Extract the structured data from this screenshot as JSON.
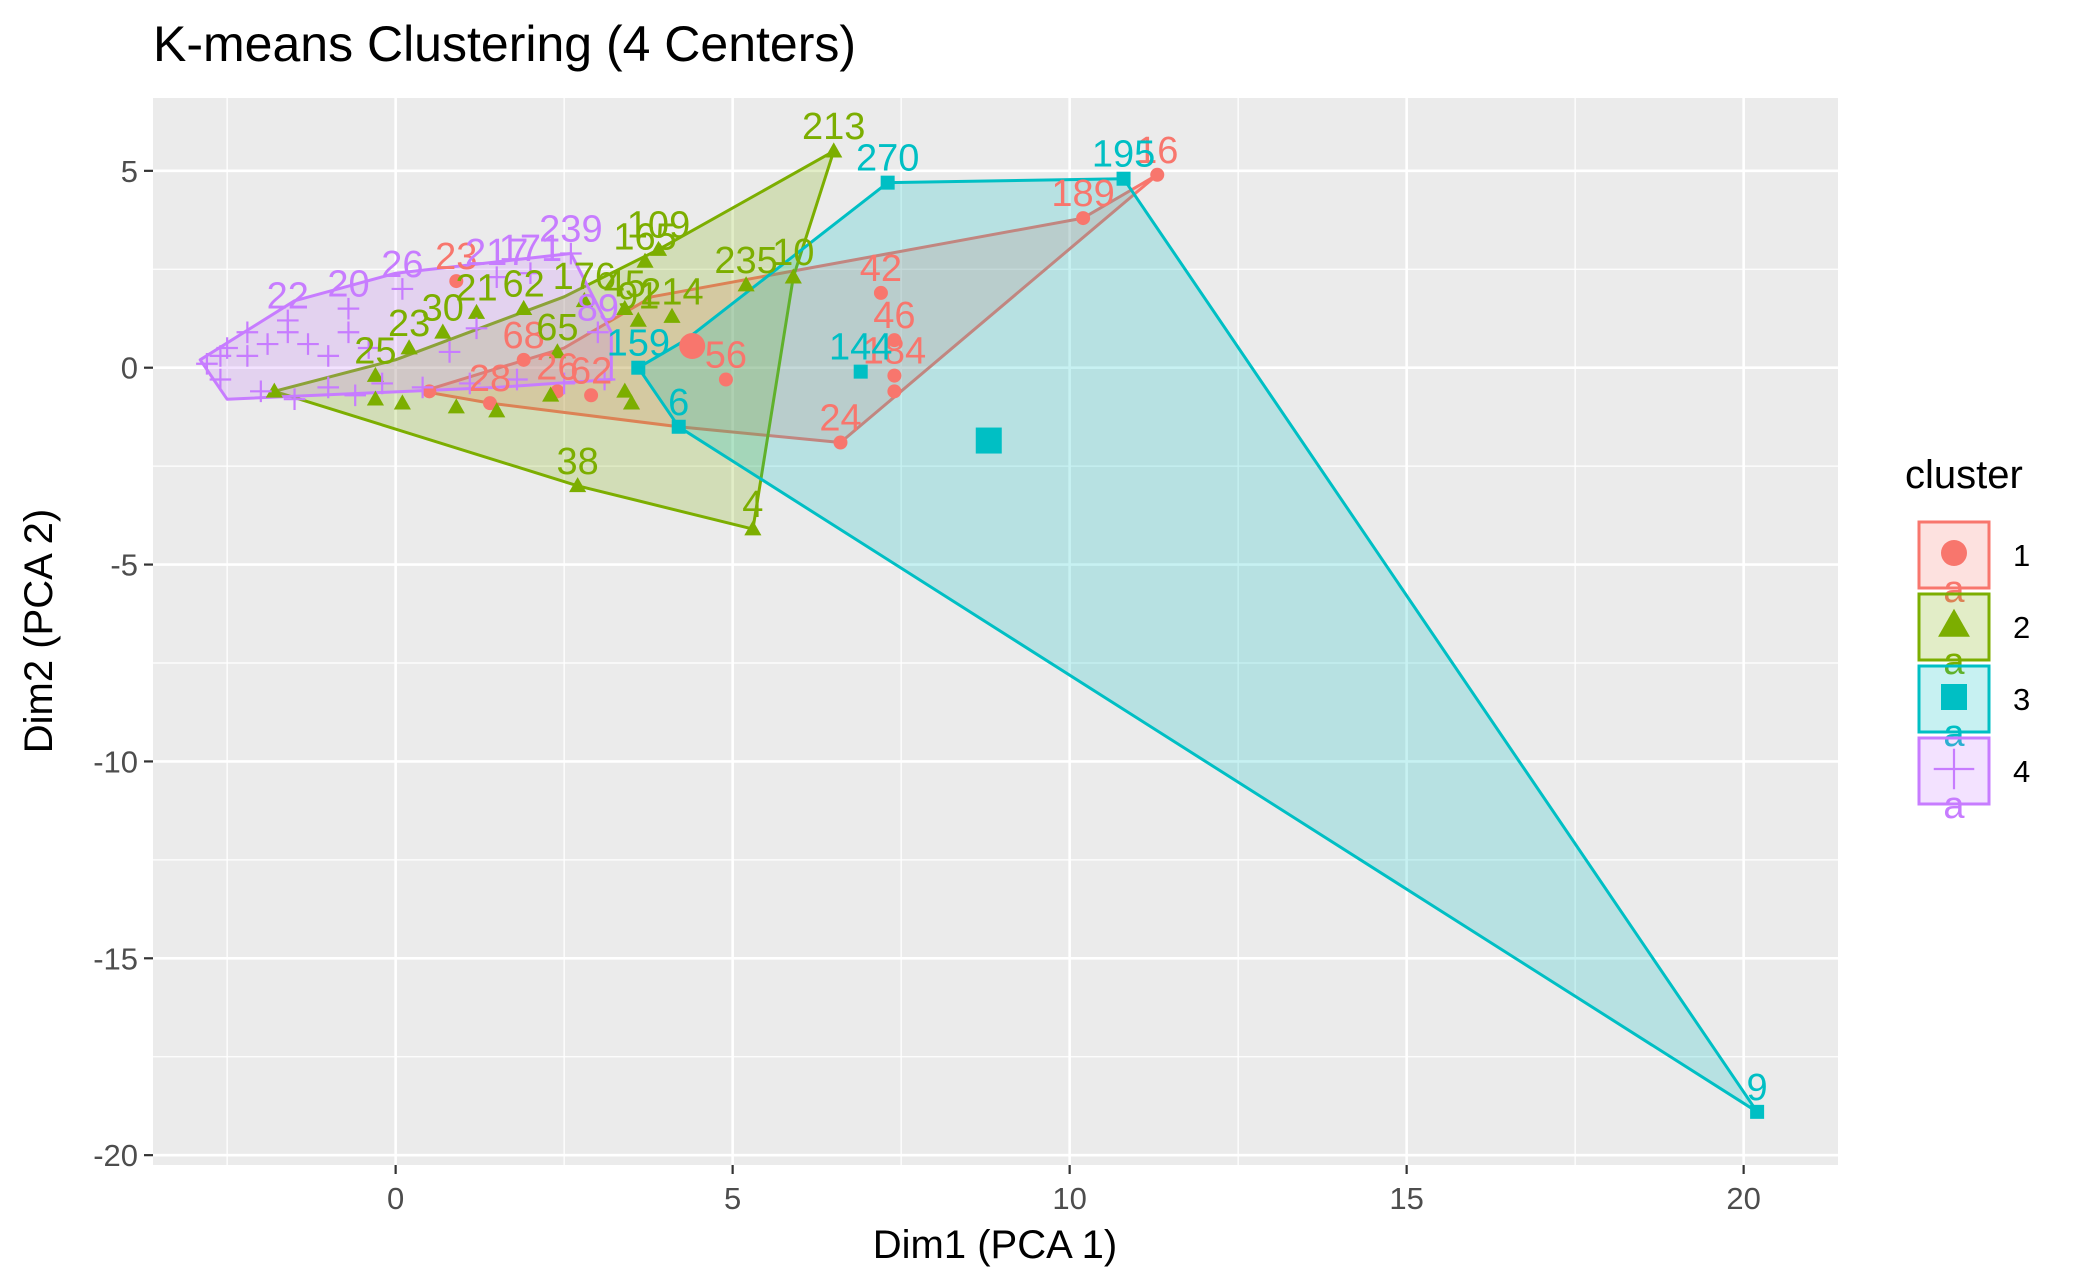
{
  "chart_data": {
    "type": "scatter",
    "title": "K-means Clustering (4 Centers)",
    "xlabel": "Dim1 (PCA 1)",
    "ylabel": "Dim2 (PCA 2)",
    "xlim": [
      -3.6,
      21.4
    ],
    "ylim": [
      -20.25,
      6.85
    ],
    "x_ticks": [
      0,
      5,
      10,
      15,
      20
    ],
    "y_ticks": [
      5,
      0,
      -5,
      -10,
      -15,
      -20
    ],
    "x_tick_labels": [
      "0",
      "5",
      "10",
      "15",
      "20"
    ],
    "y_tick_labels": [
      "5",
      "0",
      "-5",
      "-10",
      "-15",
      "-20"
    ],
    "grid": true,
    "legend": {
      "title": "cluster",
      "position": "right",
      "items": [
        {
          "label": "1",
          "shape": "circle"
        },
        {
          "label": "2",
          "shape": "triangle"
        },
        {
          "label": "3",
          "shape": "square"
        },
        {
          "label": "4",
          "shape": "plus"
        }
      ]
    },
    "legend_key_letter": "a",
    "colors": {
      "1": "#F8766D",
      "2": "#7CAE00",
      "3": "#00BFC4",
      "4": "#C77CFF",
      "panel": "#EBEBEB",
      "grid": "#FFFFFF"
    },
    "series": [
      {
        "name": "1",
        "hull": [
          [
            11.3,
            4.9
          ],
          [
            6.6,
            -1.9
          ],
          [
            4.2,
            -1.5
          ],
          [
            1.4,
            -0.9
          ],
          [
            0.4,
            -0.6
          ],
          [
            2.5,
            0.5
          ],
          [
            3.8,
            1.8
          ],
          [
            10.2,
            3.8
          ]
        ],
        "points": [
          {
            "x": 11.3,
            "y": 4.9,
            "label": "16"
          },
          {
            "x": 10.2,
            "y": 3.8,
            "label": "189"
          },
          {
            "x": 7.2,
            "y": 1.9,
            "label": "42"
          },
          {
            "x": 7.4,
            "y": 0.7,
            "label": "46"
          },
          {
            "x": 7.4,
            "y": -0.2,
            "label": "184"
          },
          {
            "x": 7.4,
            "y": -0.6,
            "label": ""
          },
          {
            "x": 6.6,
            "y": -1.9,
            "label": "24"
          },
          {
            "x": 4.9,
            "y": -0.3,
            "label": "56"
          },
          {
            "x": 2.9,
            "y": -0.7,
            "label": "62"
          },
          {
            "x": 2.4,
            "y": -0.6,
            "label": "26"
          },
          {
            "x": 1.9,
            "y": 0.2,
            "label": "68"
          },
          {
            "x": 1.4,
            "y": -0.9,
            "label": "28"
          },
          {
            "x": 0.5,
            "y": -0.6,
            "label": ""
          },
          {
            "x": 0.9,
            "y": 2.2,
            "label": "23"
          }
        ],
        "center": {
          "x": 4.4,
          "y": 0.55
        }
      },
      {
        "name": "2",
        "hull": [
          [
            6.5,
            5.5
          ],
          [
            5.9,
            2.3
          ],
          [
            5.3,
            -4.1
          ],
          [
            2.7,
            -3.0
          ],
          [
            -1.8,
            -0.6
          ],
          [
            0.0,
            0.2
          ],
          [
            2.5,
            1.8
          ],
          [
            3.9,
            3.0
          ]
        ],
        "points": [
          {
            "x": 6.5,
            "y": 5.5,
            "label": "213"
          },
          {
            "x": 3.9,
            "y": 3.0,
            "label": "109"
          },
          {
            "x": 3.7,
            "y": 2.7,
            "label": "165"
          },
          {
            "x": 5.9,
            "y": 2.3,
            "label": "10"
          },
          {
            "x": 5.2,
            "y": 2.1,
            "label": "235"
          },
          {
            "x": 4.1,
            "y": 1.3,
            "label": "214"
          },
          {
            "x": 3.6,
            "y": 1.2,
            "label": "91"
          },
          {
            "x": 3.4,
            "y": 1.5,
            "label": "45"
          },
          {
            "x": 2.8,
            "y": 1.7,
            "label": "176"
          },
          {
            "x": 1.9,
            "y": 1.5,
            "label": "62"
          },
          {
            "x": 1.2,
            "y": 1.4,
            "label": "21"
          },
          {
            "x": 0.7,
            "y": 0.9,
            "label": "30"
          },
          {
            "x": 0.2,
            "y": 0.5,
            "label": "23"
          },
          {
            "x": -0.3,
            "y": -0.2,
            "label": "25"
          },
          {
            "x": 2.4,
            "y": 0.4,
            "label": "65"
          },
          {
            "x": 3.5,
            "y": -0.9,
            "label": ""
          },
          {
            "x": 3.4,
            "y": -0.6,
            "label": ""
          },
          {
            "x": 2.3,
            "y": -0.7,
            "label": ""
          },
          {
            "x": 1.5,
            "y": -1.1,
            "label": ""
          },
          {
            "x": 0.9,
            "y": -1.0,
            "label": ""
          },
          {
            "x": 0.1,
            "y": -0.9,
            "label": ""
          },
          {
            "x": -0.3,
            "y": -0.8,
            "label": ""
          },
          {
            "x": -1.8,
            "y": -0.6,
            "label": ""
          },
          {
            "x": 2.7,
            "y": -3.0,
            "label": "38"
          },
          {
            "x": 5.3,
            "y": -4.1,
            "label": "4"
          }
        ]
      },
      {
        "name": "3",
        "hull": [
          [
            10.8,
            4.8
          ],
          [
            20.2,
            -18.9
          ],
          [
            4.2,
            -1.5
          ],
          [
            3.6,
            0.0
          ],
          [
            4.3,
            0.7
          ],
          [
            7.3,
            4.7
          ]
        ],
        "points": [
          {
            "x": 7.3,
            "y": 4.7,
            "label": "270"
          },
          {
            "x": 10.8,
            "y": 4.8,
            "label": "195"
          },
          {
            "x": 6.9,
            "y": -0.1,
            "label": "144"
          },
          {
            "x": 4.2,
            "y": -1.5,
            "label": "6"
          },
          {
            "x": 3.6,
            "y": 0.0,
            "label": "159"
          },
          {
            "x": 20.2,
            "y": -18.9,
            "label": "9"
          }
        ],
        "center": {
          "x": 8.8,
          "y": -1.85
        }
      },
      {
        "name": "4",
        "hull": [
          [
            -2.9,
            0.2
          ],
          [
            -2.5,
            -0.8
          ],
          [
            1.5,
            -0.5
          ],
          [
            3.2,
            -0.3
          ],
          [
            3.2,
            0.9
          ],
          [
            2.6,
            2.9
          ],
          [
            0.0,
            2.4
          ],
          [
            -1.5,
            1.7
          ]
        ],
        "points": [
          {
            "x": 2.6,
            "y": 2.9,
            "label": "239"
          },
          {
            "x": 2.0,
            "y": 2.4,
            "label": "171"
          },
          {
            "x": 1.5,
            "y": 2.3,
            "label": "217"
          },
          {
            "x": 3.0,
            "y": 0.9,
            "label": "89"
          },
          {
            "x": 0.1,
            "y": 2.0,
            "label": "26"
          },
          {
            "x": -0.7,
            "y": 1.5,
            "label": "20"
          },
          {
            "x": -1.6,
            "y": 1.2,
            "label": "22"
          },
          {
            "x": -2.2,
            "y": 0.9,
            "label": ""
          },
          {
            "x": -2.5,
            "y": 0.5,
            "label": ""
          },
          {
            "x": -2.8,
            "y": 0.1,
            "label": ""
          },
          {
            "x": -2.6,
            "y": 0.3,
            "label": ""
          },
          {
            "x": -2.2,
            "y": 0.3,
            "label": ""
          },
          {
            "x": -1.9,
            "y": 0.6,
            "label": ""
          },
          {
            "x": -1.6,
            "y": 0.9,
            "label": ""
          },
          {
            "x": -1.3,
            "y": 0.6,
            "label": ""
          },
          {
            "x": -1.0,
            "y": 0.3,
            "label": ""
          },
          {
            "x": -0.7,
            "y": 0.9,
            "label": ""
          },
          {
            "x": -0.4,
            "y": 0.5,
            "label": ""
          },
          {
            "x": -2.0,
            "y": -0.6,
            "label": ""
          },
          {
            "x": -1.5,
            "y": -0.8,
            "label": ""
          },
          {
            "x": -1.0,
            "y": -0.5,
            "label": ""
          },
          {
            "x": -0.6,
            "y": -0.7,
            "label": ""
          },
          {
            "x": -0.2,
            "y": -0.4,
            "label": ""
          },
          {
            "x": 0.4,
            "y": -0.5,
            "label": ""
          },
          {
            "x": 1.1,
            "y": -0.4,
            "label": ""
          },
          {
            "x": 1.8,
            "y": -0.3,
            "label": ""
          },
          {
            "x": 2.5,
            "y": -0.4,
            "label": ""
          },
          {
            "x": 3.1,
            "y": -0.3,
            "label": ""
          },
          {
            "x": 0.8,
            "y": 0.4,
            "label": ""
          },
          {
            "x": 1.2,
            "y": 1.0,
            "label": ""
          },
          {
            "x": -2.6,
            "y": -0.3,
            "label": ""
          }
        ]
      }
    ]
  }
}
